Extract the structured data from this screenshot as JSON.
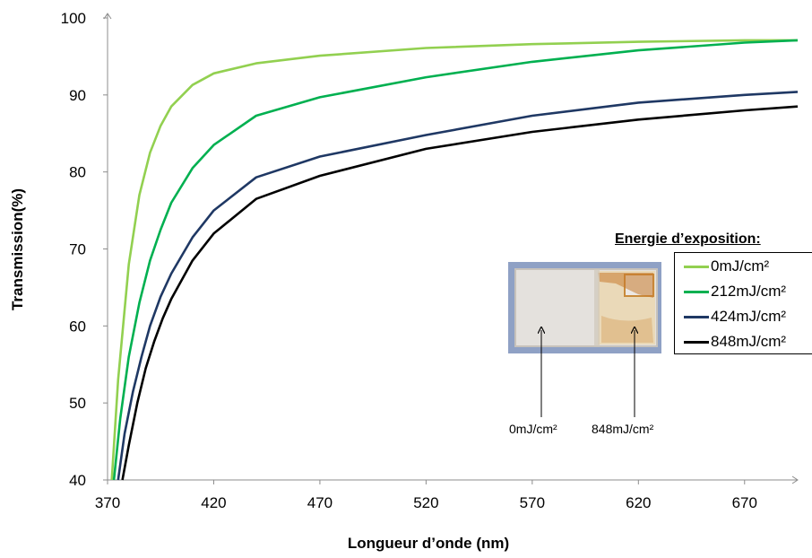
{
  "chart_data": {
    "type": "line",
    "xlabel": "Longueur d’onde (nm)",
    "ylabel": "Transmission(%)",
    "xlim": [
      370,
      695
    ],
    "ylim": [
      40,
      100
    ],
    "x_ticks": [
      370,
      420,
      470,
      520,
      570,
      620,
      670
    ],
    "y_ticks": [
      40,
      50,
      60,
      70,
      80,
      90,
      100
    ],
    "grid": false,
    "legend_title": "Energie d’exposition:",
    "legend_position": "right",
    "series": [
      {
        "name": "0mJ/cm²",
        "color": "#92d050",
        "x": [
          372,
          375,
          380,
          385,
          390,
          395,
          400,
          410,
          420,
          440,
          470,
          520,
          570,
          620,
          670,
          695
        ],
        "y": [
          40,
          53,
          68,
          77,
          82.5,
          86,
          88.5,
          91.3,
          92.8,
          94.1,
          95.1,
          96.1,
          96.6,
          96.9,
          97.1,
          97.1
        ]
      },
      {
        "name": "212mJ/cm²",
        "color": "#00b050",
        "x": [
          373,
          376,
          380,
          385,
          390,
          395,
          400,
          410,
          420,
          440,
          470,
          520,
          570,
          620,
          670,
          695
        ],
        "y": [
          40,
          48,
          56,
          63,
          68.5,
          72.5,
          76,
          80.5,
          83.5,
          87.3,
          89.7,
          92.3,
          94.3,
          95.8,
          96.8,
          97.1
        ]
      },
      {
        "name": "424mJ/cm²",
        "color": "#1f3864",
        "x": [
          375,
          378,
          382,
          386,
          390,
          395,
          400,
          410,
          420,
          440,
          470,
          520,
          570,
          620,
          670,
          695
        ],
        "y": [
          40,
          46,
          51.5,
          56,
          60,
          63.8,
          66.8,
          71.5,
          75,
          79.3,
          82,
          84.8,
          87.3,
          89,
          90,
          90.4
        ]
      },
      {
        "name": "848mJ/cm²",
        "color": "#000000",
        "x": [
          377,
          380,
          384,
          388,
          392,
          396,
          400,
          410,
          420,
          440,
          470,
          520,
          570,
          620,
          670,
          695
        ],
        "y": [
          40,
          44.5,
          50,
          54.5,
          58,
          61,
          63.5,
          68.5,
          72,
          76.5,
          79.5,
          83,
          85.2,
          86.8,
          88,
          88.5
        ]
      }
    ]
  },
  "photo": {
    "label_left": "0mJ/cm²",
    "label_right": "848mJ/cm²"
  }
}
